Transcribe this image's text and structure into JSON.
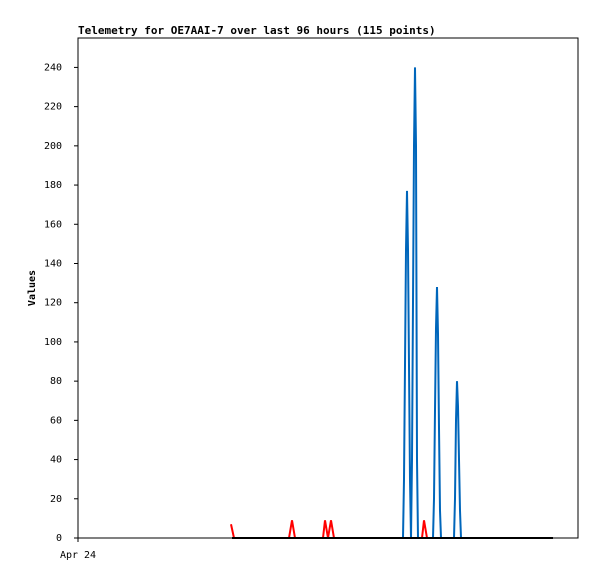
{
  "chart_data": {
    "type": "line",
    "title": "Telemetry for OE7AAI-7 over last 96 hours (115 points)",
    "y_label": "Values",
    "xlim": [
      0,
      100
    ],
    "xticks": [
      {
        "value": 0,
        "label": "Apr 24"
      }
    ],
    "ylim": [
      0,
      255
    ],
    "yticks": [
      0,
      20,
      40,
      60,
      80,
      100,
      120,
      140,
      160,
      180,
      200,
      220,
      240
    ],
    "series": [
      {
        "color": "#ff0000",
        "x": [
          30.6,
          31.2,
          42.2,
          42.8,
          43.4,
          49.0,
          49.4,
          50.0,
          50.6,
          51.2,
          68.8,
          69.2,
          69.8
        ],
        "values": [
          7,
          0,
          0,
          9,
          0,
          0,
          9,
          0,
          9,
          0,
          0,
          9,
          0
        ]
      },
      {
        "color": "#0066bb",
        "x": [
          65.0,
          65.2,
          65.4,
          65.6,
          65.8,
          66.0,
          66.2,
          66.4,
          66.6,
          66.8,
          67.0,
          67.2,
          67.4,
          67.6,
          67.8,
          68.0,
          71.0,
          71.2,
          71.4,
          71.6,
          71.8,
          72.0,
          72.2,
          72.4,
          72.6,
          75.2,
          75.4,
          75.6,
          75.8,
          76.0,
          76.2,
          76.4,
          76.6
        ],
        "values": [
          0,
          30,
          88,
          147,
          177,
          147,
          88,
          30,
          0,
          40,
          120,
          200,
          240,
          200,
          40,
          0,
          0,
          20,
          65,
          107,
          128,
          104,
          56,
          14,
          0,
          0,
          20,
          60,
          80,
          67,
          40,
          14,
          0
        ]
      },
      {
        "color": "#000000",
        "x": [
          30.8,
          95.0
        ],
        "values": [
          0,
          0
        ]
      }
    ]
  }
}
